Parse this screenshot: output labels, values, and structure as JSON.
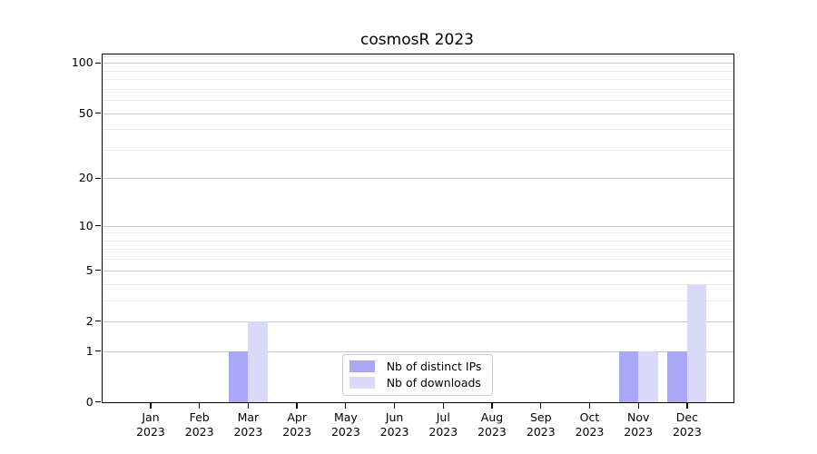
{
  "chart_data": {
    "type": "bar",
    "title": "cosmosR 2023",
    "categories": [
      {
        "month": "Jan",
        "year": "2023"
      },
      {
        "month": "Feb",
        "year": "2023"
      },
      {
        "month": "Mar",
        "year": "2023"
      },
      {
        "month": "Apr",
        "year": "2023"
      },
      {
        "month": "May",
        "year": "2023"
      },
      {
        "month": "Jun",
        "year": "2023"
      },
      {
        "month": "Jul",
        "year": "2023"
      },
      {
        "month": "Aug",
        "year": "2023"
      },
      {
        "month": "Sep",
        "year": "2023"
      },
      {
        "month": "Oct",
        "year": "2023"
      },
      {
        "month": "Nov",
        "year": "2023"
      },
      {
        "month": "Dec",
        "year": "2023"
      }
    ],
    "series": [
      {
        "name": "Nb of distinct IPs",
        "color": "#a8a8f5",
        "values": [
          0,
          0,
          1,
          0,
          0,
          0,
          0,
          0,
          0,
          0,
          1,
          1
        ]
      },
      {
        "name": "Nb of downloads",
        "color": "#d9d9f8",
        "values": [
          0,
          0,
          2,
          0,
          0,
          0,
          0,
          0,
          0,
          0,
          1,
          4
        ]
      }
    ],
    "y_scale": "log1p",
    "ylim": [
      0,
      113
    ],
    "y_major_ticks": [
      0,
      1,
      2,
      5,
      10,
      20,
      50,
      100
    ],
    "y_minor_gridlines": [
      3,
      4,
      6,
      7,
      8,
      9,
      30,
      40,
      60,
      70,
      80,
      90,
      110
    ],
    "grid": true,
    "legend_position": "lower center",
    "colors": {
      "major_grid": "#c9c9c9",
      "minor_grid": "#ececec",
      "axis": "#000000",
      "text": "#000000",
      "background": "#ffffff"
    }
  }
}
